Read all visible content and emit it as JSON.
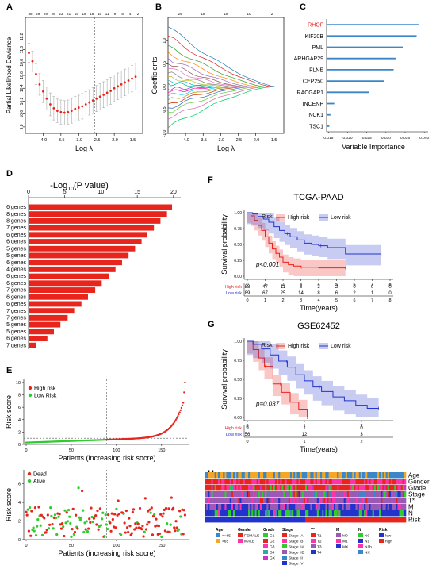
{
  "panel_labels": {
    "A": "A",
    "B": "B",
    "C": "C",
    "D": "D",
    "E": "E",
    "F": "F",
    "G": "G",
    "H": "H"
  },
  "chart_data": [
    {
      "panel": "A",
      "type": "scatter",
      "xlabel": "Log λ",
      "ylabel": "Partial Likelihood Deviance",
      "xlim": [
        -4.5,
        -1.2
      ],
      "ylim": [
        9.7,
        11.5
      ],
      "xticks": [
        -4.0,
        -3.5,
        -3.0,
        -2.5,
        -2.0,
        -1.5
      ],
      "yticks": [
        9.8,
        10.0,
        10.2,
        10.4,
        10.6,
        10.8,
        11.0,
        11.2
      ],
      "top_ticks": [
        "36",
        "29",
        "29",
        "26",
        "23",
        "21",
        "19",
        "18",
        "16",
        "15",
        "11",
        "9",
        "5",
        "4",
        "2"
      ],
      "vlines": [
        -3.55,
        -2.55
      ],
      "x": [
        -4.4,
        -4.3,
        -4.2,
        -4.1,
        -4.0,
        -3.9,
        -3.8,
        -3.7,
        -3.6,
        -3.5,
        -3.4,
        -3.3,
        -3.2,
        -3.1,
        -3.0,
        -2.9,
        -2.8,
        -2.7,
        -2.6,
        -2.5,
        -2.4,
        -2.3,
        -2.2,
        -2.1,
        -2.0,
        -1.9,
        -1.8,
        -1.7,
        -1.6,
        -1.5,
        -1.4
      ],
      "values": [
        10.95,
        10.82,
        10.62,
        10.46,
        10.35,
        10.24,
        10.15,
        10.09,
        10.05,
        10.03,
        10.02,
        10.03,
        10.05,
        10.08,
        10.1,
        10.12,
        10.15,
        10.18,
        10.21,
        10.24,
        10.27,
        10.3,
        10.33,
        10.36,
        10.4,
        10.43,
        10.46,
        10.49,
        10.52,
        10.55,
        10.58
      ],
      "err": [
        0.3,
        0.32,
        0.33,
        0.34,
        0.35,
        0.36,
        0.36,
        0.37,
        0.37,
        0.38,
        0.38,
        0.38,
        0.39,
        0.39,
        0.39,
        0.4,
        0.4,
        0.4,
        0.41,
        0.41,
        0.41,
        0.41,
        0.42,
        0.42,
        0.42,
        0.42,
        0.42,
        0.42,
        0.42,
        0.42,
        0.42
      ]
    },
    {
      "panel": "B",
      "type": "line",
      "xlabel": "Log λ",
      "ylabel": "Coefficients",
      "xlim": [
        -4.5,
        -1.2
      ],
      "ylim": [
        -1.0,
        1.5
      ],
      "xticks": [
        -4.0,
        -3.5,
        -3.0,
        -2.5,
        -2.0,
        -1.5
      ],
      "yticks": [
        -1.0,
        -0.5,
        0.0,
        0.5,
        1.0
      ],
      "top_ticks": [
        "29",
        "18",
        "18",
        "10",
        "2"
      ],
      "colors": [
        "#1f77b4",
        "#d62728",
        "#2ca02c",
        "#ff7f0e",
        "#9467bd",
        "#8c564b",
        "#e377c2",
        "#7f7f7f",
        "#bcbd22",
        "#17becf",
        "#00aa88",
        "#aa00ff",
        "#ff00aa",
        "#00ccff",
        "#999900",
        "#cc3300",
        "#3366cc",
        "#66cc33",
        "#cc6699",
        "#00cc66"
      ],
      "start": [
        1.3,
        1.1,
        0.9,
        0.75,
        0.62,
        0.5,
        0.4,
        0.3,
        0.22,
        0.15,
        0.08,
        -0.05,
        -0.12,
        -0.2,
        -0.28,
        -0.36,
        -0.45,
        -0.55,
        -0.7,
        -0.88
      ],
      "end_x": [
        -1.4,
        -1.5,
        -1.7,
        -1.9,
        -2.1,
        -2.3,
        -2.4,
        -2.6,
        -2.8,
        -3.0,
        -3.1,
        -3.2,
        -3.0,
        -2.8,
        -2.6,
        -2.4,
        -2.2,
        -2.0,
        -1.8,
        -1.6
      ]
    },
    {
      "panel": "C",
      "type": "bar",
      "xlabel": "Variable Importance",
      "categories": [
        "RHOF",
        "KIF20B",
        "PML",
        "ARHGAP29",
        "FLNE",
        "CEP250",
        "RACGAP1",
        "INCENP",
        "NCK1",
        "TSC1"
      ],
      "values": [
        0.0385,
        0.038,
        0.0345,
        0.0325,
        0.032,
        0.0295,
        0.0255,
        0.0165,
        0.0155,
        0.0152
      ],
      "xlim": [
        0.0145,
        0.041
      ],
      "xticks": [
        "0.015",
        "0.020",
        "0.025",
        "0.030",
        "0.035",
        "0.040"
      ],
      "highlight": "RHOF",
      "highlight_color": "#e41a1c",
      "bar_color": "#3a86c8"
    },
    {
      "panel": "D",
      "type": "bar",
      "title_main": "-Log",
      "title_sub": "10",
      "title_paren": "(P value)",
      "categories": [
        "6 genes",
        "8 genes",
        "8 genes",
        "7 genes",
        "6 genes",
        "6 genes",
        "5 genes",
        "5 genes",
        "6 genes",
        "4 genes",
        "6 genes",
        "6 genes",
        "7 genes",
        "6 genes",
        "6 genes",
        "7 genes",
        "7 genes",
        "5 genes",
        "5 genes",
        "6 genes",
        "7 genes"
      ],
      "values": [
        19.8,
        19.1,
        18.2,
        17.3,
        16.4,
        15.6,
        14.7,
        13.8,
        12.9,
        12.0,
        11.1,
        10.1,
        9.2,
        8.2,
        7.3,
        6.3,
        5.4,
        4.4,
        3.5,
        2.6,
        1.0
      ],
      "xlim": [
        0,
        21
      ],
      "xticks": [
        0,
        5,
        10,
        15,
        20
      ],
      "bar_color": "#e8251c"
    },
    {
      "panel": "E1",
      "type": "scatter",
      "xlabel": "Patients (increasing risk socre)",
      "ylabel": "Risk score",
      "xlim": [
        0,
        180
      ],
      "ylim": [
        0,
        10.5
      ],
      "xticks": [
        0,
        50,
        100,
        150
      ],
      "yticks": [
        0,
        2,
        4,
        6,
        8,
        10
      ],
      "legend": [
        "High risk",
        "Low Risk"
      ],
      "legend_colors": [
        "#e8251c",
        "#2ecc2e"
      ],
      "cutoff_x": 89,
      "cutoff_y": 1.0,
      "n": 177
    },
    {
      "panel": "E2",
      "type": "scatter",
      "xlabel": "Patients (increasing risk socre)",
      "ylabel": "Risk score",
      "xlim": [
        0,
        180
      ],
      "ylim": [
        0,
        7.5
      ],
      "xticks": [
        0,
        50,
        100,
        150
      ],
      "yticks": [
        0,
        2,
        4,
        6
      ],
      "legend": [
        "Dead",
        "Alive"
      ],
      "legend_colors": [
        "#e8251c",
        "#2ecc2e"
      ],
      "cutoff_x": 89,
      "n": 177
    },
    {
      "panel": "F",
      "type": "line",
      "title": "TCGA-PAAD",
      "xlabel": "Time(years)",
      "ylabel": "Survival probability",
      "xlim": [
        0,
        8
      ],
      "ylim": [
        0,
        1
      ],
      "xticks": [
        0,
        1,
        2,
        3,
        4,
        5,
        6,
        7,
        8
      ],
      "yticks": [
        "0.00",
        "0.25",
        "0.50",
        "0.75",
        "1.00"
      ],
      "legend_title": "Risk",
      "series": [
        {
          "name": "High risk",
          "color": "#e8251c",
          "x": [
            0,
            0.2,
            0.4,
            0.6,
            0.8,
            1.0,
            1.2,
            1.4,
            1.6,
            1.8,
            2.0,
            2.3,
            2.6,
            3.0,
            3.5,
            4.0,
            4.5,
            5.0,
            5.5
          ],
          "values": [
            1.0,
            0.95,
            0.88,
            0.8,
            0.72,
            0.62,
            0.52,
            0.43,
            0.36,
            0.3,
            0.22,
            0.18,
            0.16,
            0.14,
            0.14,
            0.13,
            0.13,
            0.13,
            0.13
          ]
        },
        {
          "name": "Low risk",
          "color": "#2233cc",
          "x": [
            0,
            0.3,
            0.6,
            0.9,
            1.2,
            1.5,
            1.8,
            2.1,
            2.4,
            2.8,
            3.2,
            3.6,
            4.0,
            4.5,
            5.0,
            5.5,
            6.0,
            6.5,
            7.0,
            7.5
          ],
          "values": [
            1.0,
            0.98,
            0.94,
            0.9,
            0.85,
            0.78,
            0.72,
            0.67,
            0.62,
            0.57,
            0.52,
            0.5,
            0.48,
            0.45,
            0.45,
            0.35,
            0.35,
            0.35,
            0.35,
            0.35
          ]
        }
      ],
      "pvalue": "p<0.001",
      "risk_table": {
        "rows": [
          "High risk",
          "Low risk"
        ],
        "values": [
          [
            "88",
            "47",
            "11",
            "6",
            "3",
            "2",
            "0",
            "0",
            "0"
          ],
          [
            "89",
            "67",
            "25",
            "14",
            "8",
            "6",
            "2",
            "1",
            "0"
          ]
        ]
      }
    },
    {
      "panel": "G",
      "type": "line",
      "title": "GSE62452",
      "xlabel": "Time(years)",
      "ylabel": "Survival probability",
      "xlim": [
        0,
        2.5
      ],
      "ylim": [
        0,
        1
      ],
      "xticks": [
        0,
        1,
        2
      ],
      "yticks": [
        "0.00",
        "0.25",
        "0.50",
        "0.75",
        "1.00"
      ],
      "legend_title": "Risk",
      "series": [
        {
          "name": "High risk",
          "color": "#e8251c",
          "x": [
            0,
            0.1,
            0.2,
            0.3,
            0.45,
            0.6,
            0.75,
            0.9,
            1.05
          ],
          "values": [
            1.0,
            0.89,
            0.78,
            0.67,
            0.44,
            0.33,
            0.2,
            0.11,
            0.0
          ]
        },
        {
          "name": "Low risk",
          "color": "#2233cc",
          "x": [
            0,
            0.1,
            0.25,
            0.4,
            0.55,
            0.7,
            0.85,
            1.0,
            1.15,
            1.3,
            1.5,
            1.7,
            1.9,
            2.1,
            2.3
          ],
          "values": [
            1.0,
            0.96,
            0.9,
            0.82,
            0.74,
            0.66,
            0.56,
            0.48,
            0.4,
            0.34,
            0.27,
            0.22,
            0.16,
            0.12,
            0.12
          ]
        }
      ],
      "pvalue": "p=0.037",
      "risk_table": {
        "rows": [
          "High risk",
          "Low risk"
        ],
        "values": [
          [
            "9",
            "1",
            "0"
          ],
          [
            "56",
            "12",
            "3"
          ]
        ]
      }
    },
    {
      "panel": "H",
      "type": "heatmap",
      "rows": [
        "Age",
        "Gender",
        "Grade",
        "Stage",
        "T*",
        "M",
        "N",
        "Risk"
      ],
      "legend_groups": [
        {
          "title": "Age",
          "items": [
            {
              "label": "<=65",
              "color": "#3a86c8"
            },
            {
              "label": ">65",
              "color": "#f5a623"
            }
          ]
        },
        {
          "title": "Gender",
          "items": [
            {
              "label": "FEMALE",
              "color": "#e8251c"
            },
            {
              "label": "MALE",
              "color": "#ff33aa"
            }
          ]
        },
        {
          "title": "Grade",
          "items": [
            {
              "label": "G1",
              "color": "#2ecc2e"
            },
            {
              "label": "G2",
              "color": "#e8251c"
            },
            {
              "label": "G3",
              "color": "#ff33aa"
            },
            {
              "label": "G4",
              "color": "#2ea8a8"
            },
            {
              "label": "GX",
              "color": "#cc33cc"
            }
          ]
        },
        {
          "title": "Stage",
          "items": [
            {
              "label": "Stage IA",
              "color": "#e8251c"
            },
            {
              "label": "Stage IB",
              "color": "#ff33aa"
            },
            {
              "label": "Stage IIA",
              "color": "#2ecc2e"
            },
            {
              "label": "Stage IIB",
              "color": "#9b59b6"
            },
            {
              "label": "Stage III",
              "color": "#3a86c8"
            },
            {
              "label": "Stage IV",
              "color": "#2233cc"
            }
          ]
        },
        {
          "title": "T*",
          "items": [
            {
              "label": "T1",
              "color": "#e8251c"
            },
            {
              "label": "T2",
              "color": "#ff33aa"
            },
            {
              "label": "T3",
              "color": "#9b59b6"
            },
            {
              "label": "T4",
              "color": "#2233cc"
            }
          ]
        },
        {
          "title": "M",
          "items": [
            {
              "label": "M0",
              "color": "#9b59b6"
            },
            {
              "label": "M1",
              "color": "#ff33aa"
            },
            {
              "label": "MX",
              "color": "#2233cc"
            }
          ]
        },
        {
          "title": "N",
          "items": [
            {
              "label": "N0",
              "color": "#2ecc2e"
            },
            {
              "label": "N1",
              "color": "#2233cc"
            },
            {
              "label": "N1b",
              "color": "#ff33aa"
            },
            {
              "label": "NX",
              "color": "#3a86c8"
            }
          ]
        },
        {
          "title": "Risk",
          "items": [
            {
              "label": "low",
              "color": "#2233cc"
            },
            {
              "label": "high",
              "color": "#e8251c"
            }
          ]
        }
      ]
    }
  ]
}
